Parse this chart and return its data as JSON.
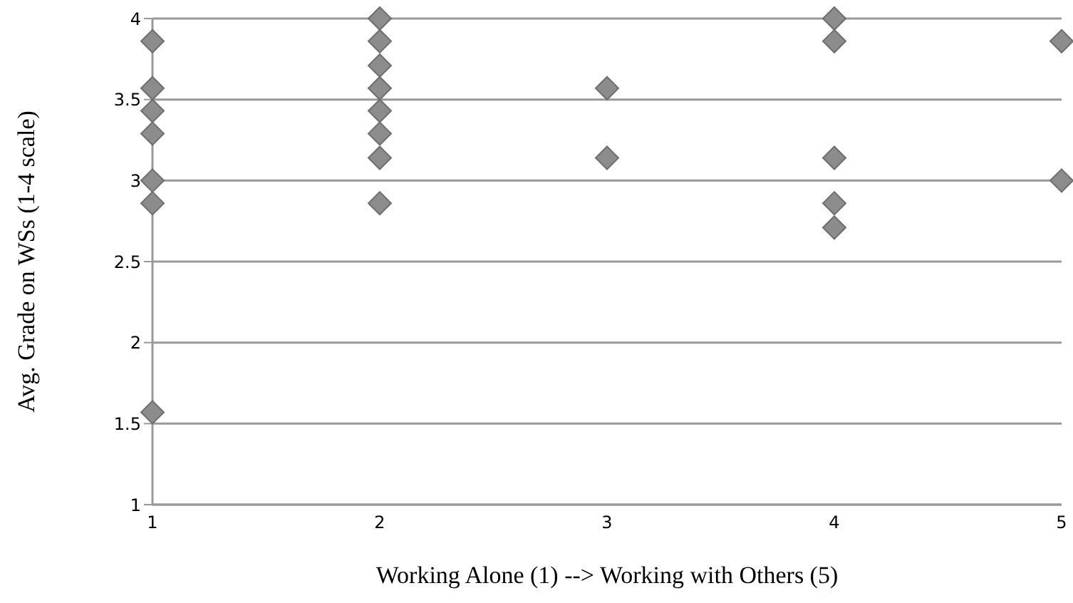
{
  "chart_data": {
    "type": "scatter",
    "xlabel": "Working Alone (1) --> Working with Others (5)",
    "ylabel": "Avg. Grade on WSs  (1-4 scale)",
    "x": [
      1,
      1,
      1,
      1,
      1,
      1,
      1,
      2,
      2,
      2,
      2,
      2,
      2,
      2,
      2,
      3,
      3,
      4,
      4,
      4,
      4,
      4,
      5,
      5
    ],
    "series": [
      {
        "color": "#8c8c8c",
        "values": [
          3.86,
          3.57,
          3.43,
          3.29,
          3.0,
          2.86,
          1.57,
          4.0,
          3.86,
          3.71,
          3.57,
          3.43,
          3.29,
          3.14,
          2.86,
          3.57,
          3.14,
          4.0,
          3.86,
          3.14,
          2.86,
          2.71,
          3.86,
          3.0
        ]
      }
    ],
    "xlim": [
      1,
      5
    ],
    "xticks": [
      1,
      2,
      3,
      4,
      5
    ],
    "ylim": [
      1,
      4
    ],
    "yticks": [
      1,
      1.5,
      2,
      2.5,
      3,
      3.5,
      4
    ],
    "grid": "y",
    "legend": false,
    "marker": "diamond"
  }
}
